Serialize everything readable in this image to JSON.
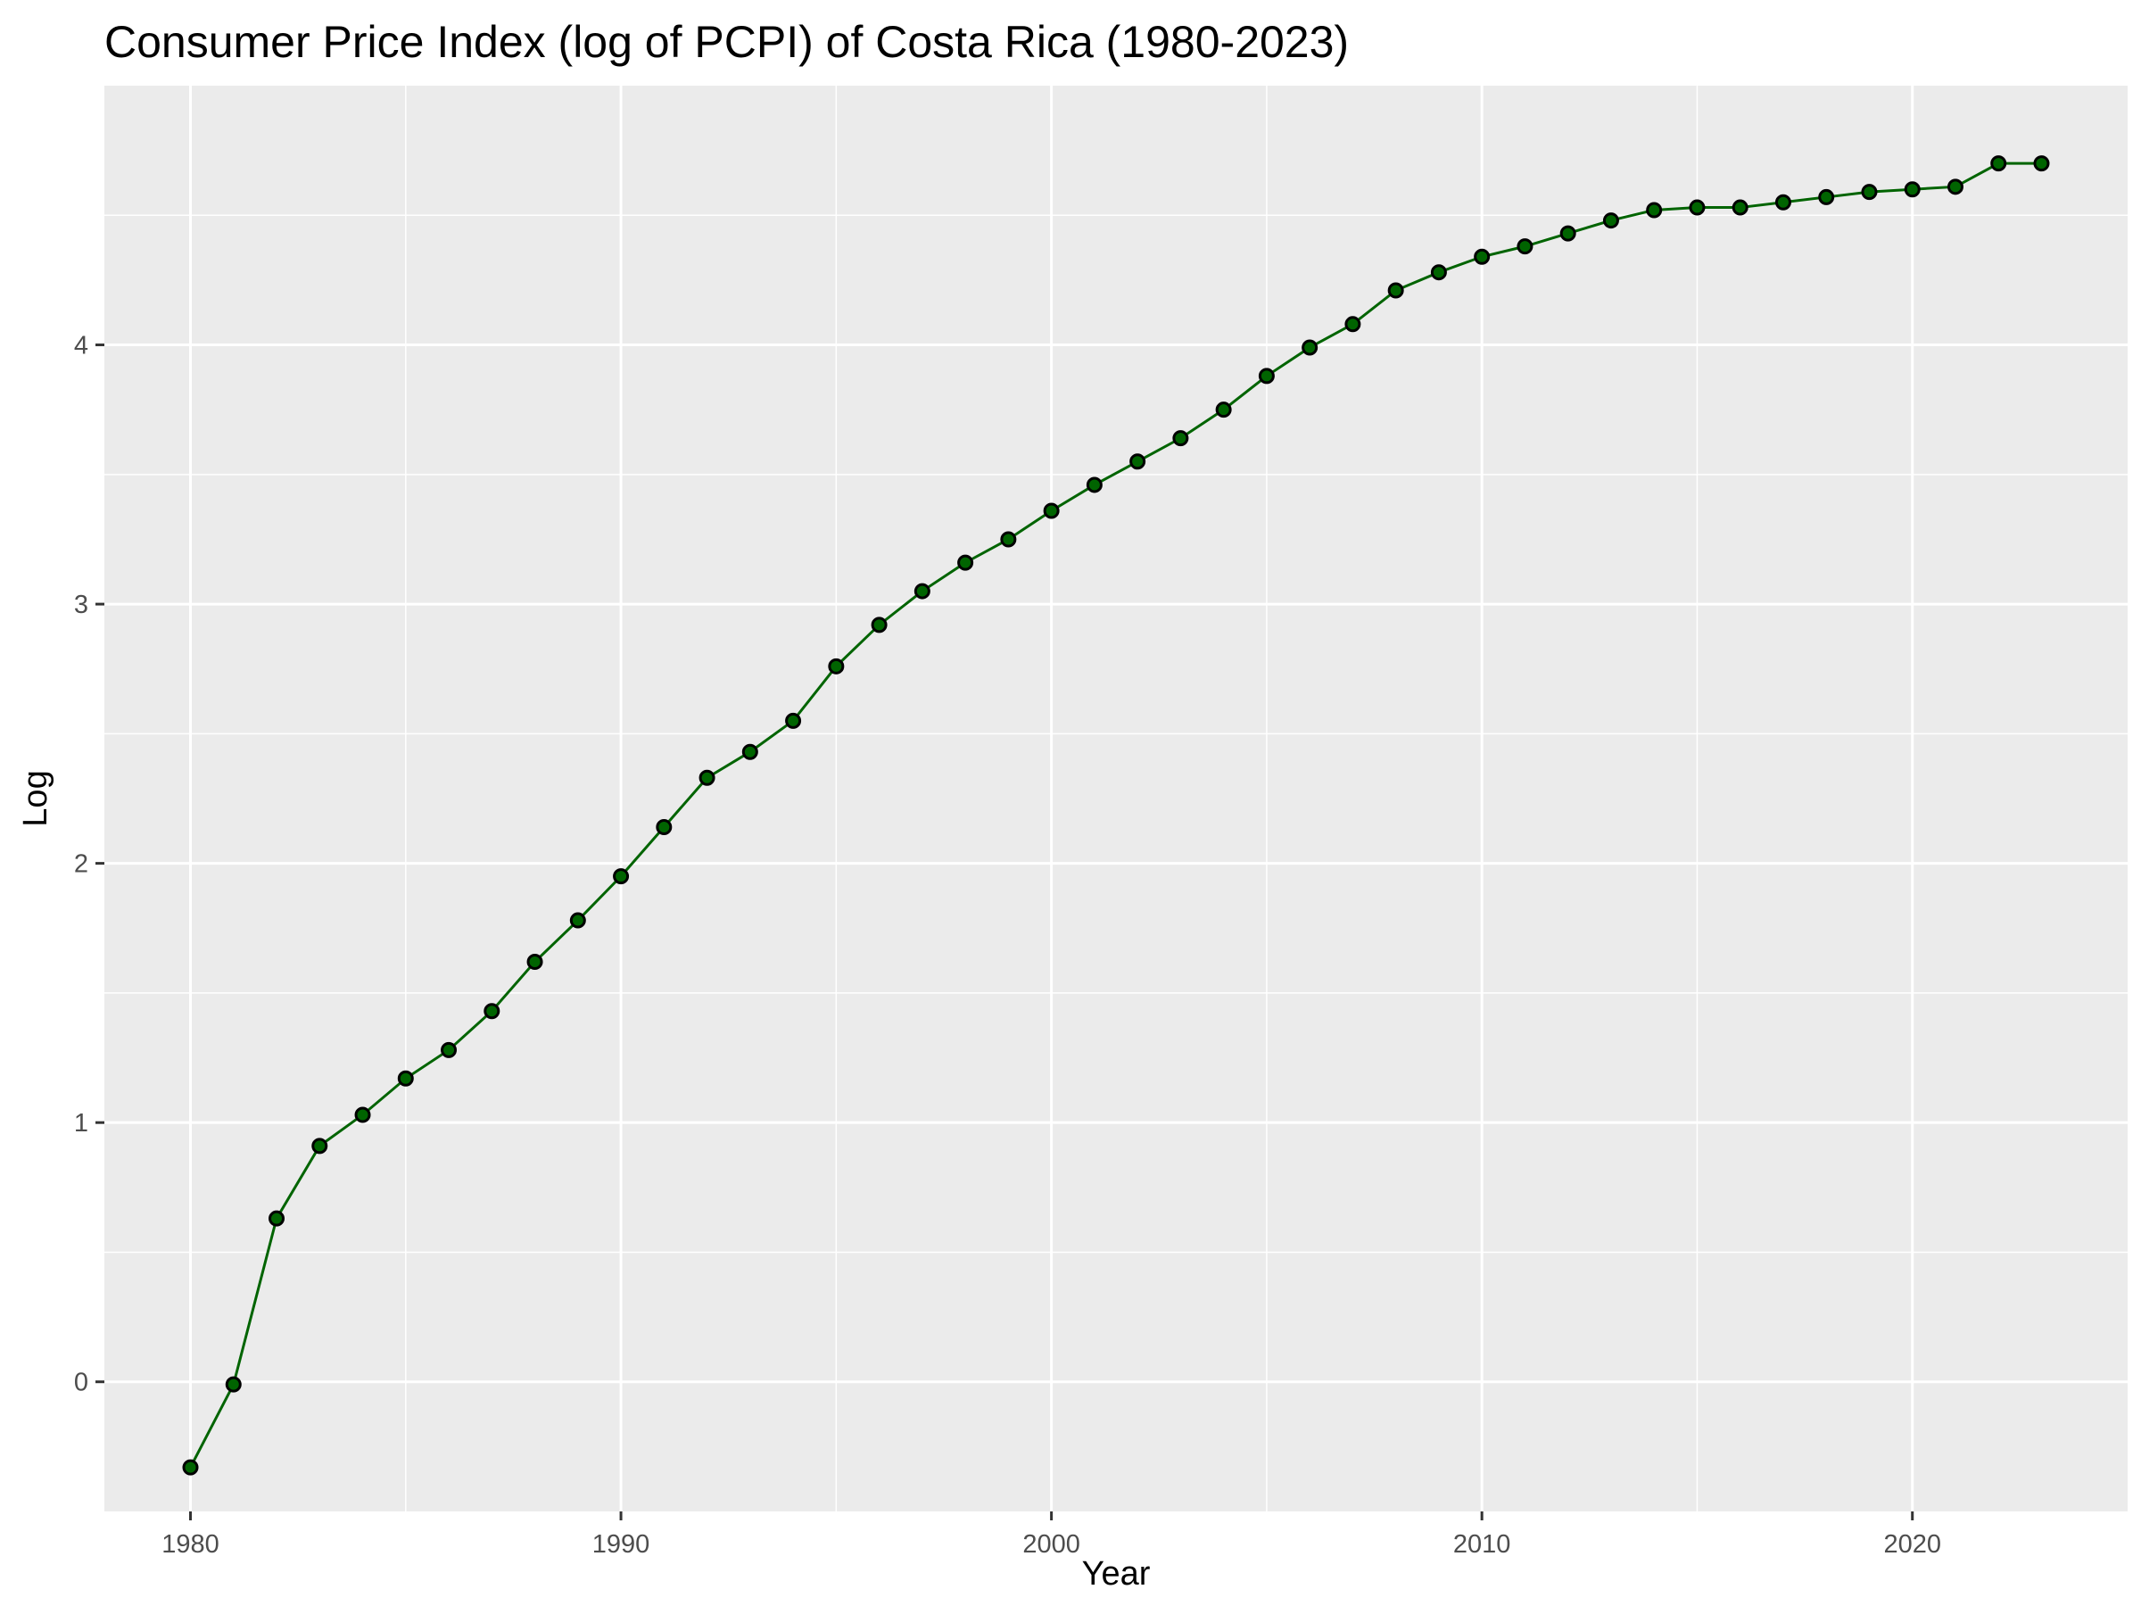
{
  "chart_data": {
    "type": "line",
    "title": "Consumer Price Index (log of PCPI) of Costa Rica (1980-2023)",
    "xlabel": "Year",
    "ylabel": "Log",
    "xlim": [
      1978,
      2025
    ],
    "ylim": [
      -0.5,
      5.0
    ],
    "x_ticks": [
      1980,
      1990,
      2000,
      2010,
      2020
    ],
    "y_ticks": [
      0,
      1,
      2,
      3,
      4
    ],
    "grid": true,
    "legend": "none",
    "colors": {
      "line": "#006400",
      "point": "#000000",
      "panel": "#ebebeb",
      "grid": "#ffffff"
    },
    "series": [
      {
        "x": [
          1980,
          1981,
          1982,
          1983,
          1984,
          1985,
          1986,
          1987,
          1988,
          1989,
          1990,
          1991,
          1992,
          1993,
          1994,
          1995,
          1996,
          1997,
          1998,
          1999,
          2000,
          2001,
          2002,
          2003,
          2004,
          2005,
          2006,
          2007,
          2008,
          2009,
          2010,
          2011,
          2012,
          2013,
          2014,
          2015,
          2016,
          2017,
          2018,
          2019,
          2020,
          2021,
          2022,
          2023
        ],
        "values": [
          -0.33,
          -0.01,
          0.63,
          0.91,
          1.03,
          1.17,
          1.28,
          1.43,
          1.62,
          1.78,
          1.95,
          2.14,
          2.33,
          2.43,
          2.55,
          2.76,
          2.92,
          3.05,
          3.16,
          3.25,
          3.36,
          3.46,
          3.55,
          3.64,
          3.75,
          3.88,
          3.99,
          4.08,
          4.21,
          4.28,
          4.34,
          4.38,
          4.43,
          4.48,
          4.52,
          4.53,
          4.53,
          4.55,
          4.57,
          4.59,
          4.6,
          4.61,
          4.7,
          4.7
        ]
      }
    ]
  }
}
